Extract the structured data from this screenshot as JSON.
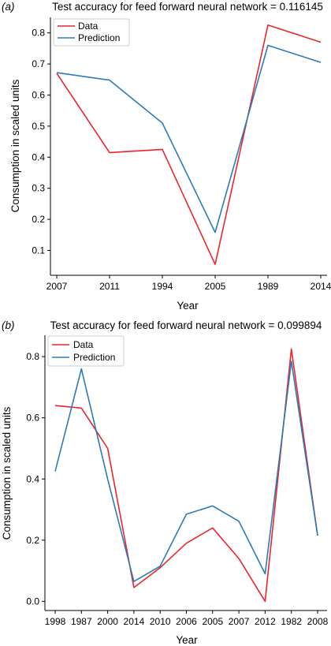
{
  "chart_data": [
    {
      "type": "line",
      "panel_label": "(a)",
      "title": "Test accuracy for feed forward neural network = 0.116145",
      "xlabel": "Year",
      "ylabel": "Consumption in scaled units",
      "categories": [
        "2007",
        "2011",
        "1994",
        "2005",
        "1989",
        "2014"
      ],
      "series": [
        {
          "name": "Data",
          "color": "#e8262d",
          "values": [
            0.67,
            0.415,
            0.425,
            0.055,
            0.825,
            0.77
          ]
        },
        {
          "name": "Prediction",
          "color": "#2b7bba",
          "values": [
            0.672,
            0.648,
            0.51,
            0.158,
            0.76,
            0.705
          ]
        }
      ],
      "yticks": [
        "0.1",
        "0.2",
        "0.3",
        "0.4",
        "0.5",
        "0.6",
        "0.7",
        "0.8"
      ],
      "ylim": [
        0.02,
        0.85
      ],
      "grid": false,
      "legend_position": "top-left"
    },
    {
      "type": "line",
      "panel_label": "(b)",
      "title": "Test accuracy for feed forward neural network = 0.099894",
      "xlabel": "Year",
      "ylabel": "Consumption in scaled units",
      "categories": [
        "1998",
        "1987",
        "2000",
        "2014",
        "2010",
        "2006",
        "2005",
        "2007",
        "2012",
        "1982",
        "2008"
      ],
      "series": [
        {
          "name": "Data",
          "color": "#e8262d",
          "values": [
            0.64,
            0.632,
            0.5,
            0.045,
            0.11,
            0.19,
            0.24,
            0.14,
            0.0,
            0.825,
            0.215
          ]
        },
        {
          "name": "Prediction",
          "color": "#2b7bba",
          "values": [
            0.425,
            0.76,
            0.4,
            0.065,
            0.115,
            0.285,
            0.312,
            0.262,
            0.09,
            0.785,
            0.215
          ]
        }
      ],
      "yticks": [
        "0.0",
        "0.2",
        "0.4",
        "0.6",
        "0.8"
      ],
      "ylim": [
        -0.03,
        0.87
      ],
      "grid": false,
      "legend_position": "top-left"
    }
  ]
}
